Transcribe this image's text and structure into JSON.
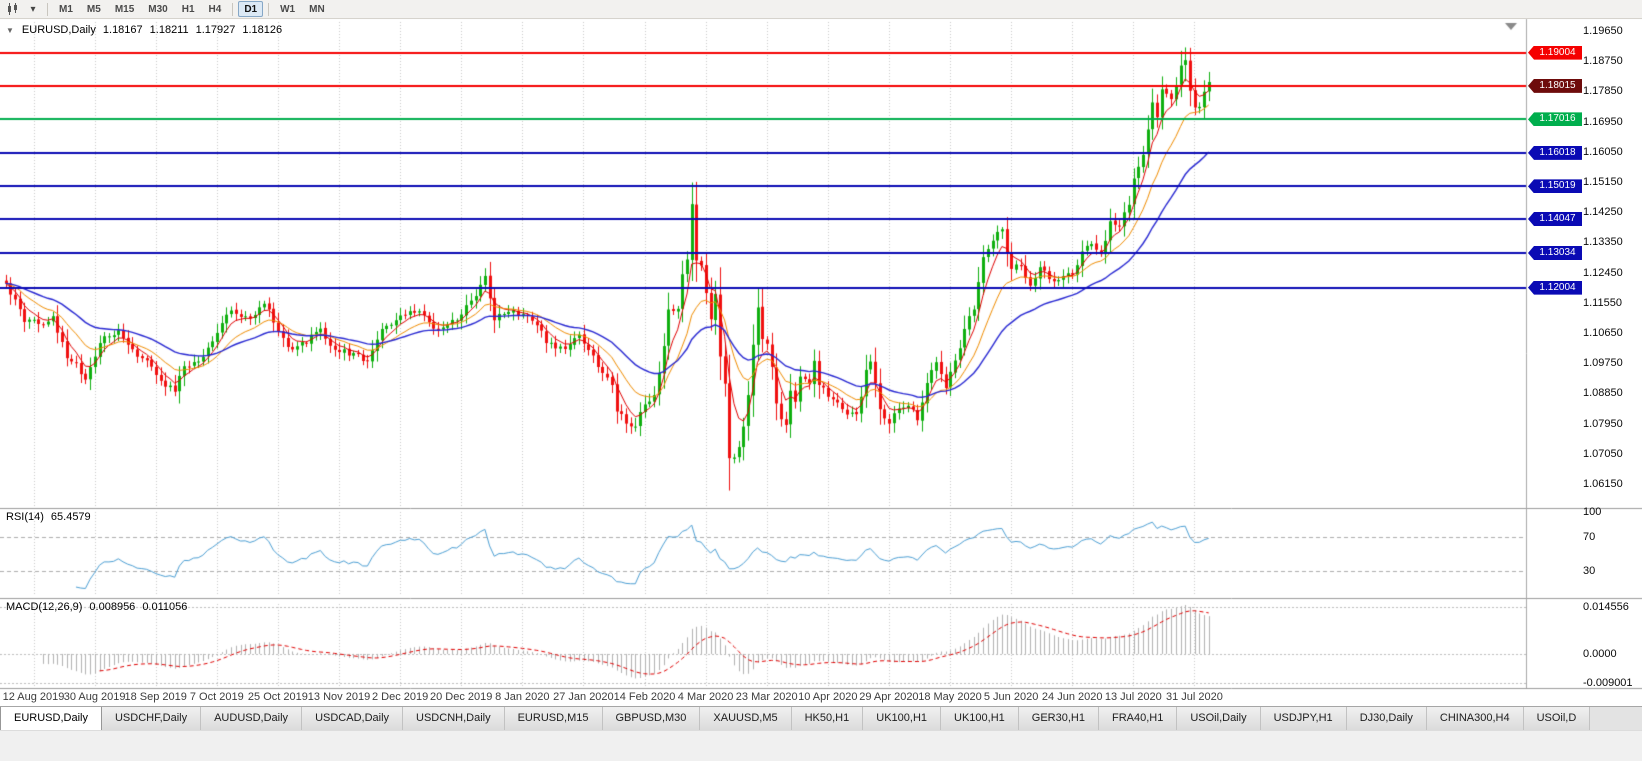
{
  "toolbar": {
    "chart_type_icon": "candlestick-chart-icon",
    "dropdown_icon": "▾",
    "timeframes": [
      {
        "label": "M1",
        "active": false,
        "sep_after": false
      },
      {
        "label": "M5",
        "active": false,
        "sep_after": false
      },
      {
        "label": "M15",
        "active": false,
        "sep_after": false
      },
      {
        "label": "M30",
        "active": false,
        "sep_after": false
      },
      {
        "label": "H1",
        "active": false,
        "sep_after": false
      },
      {
        "label": "H4",
        "active": false,
        "sep_after": true
      },
      {
        "label": "D1",
        "active": true,
        "sep_after": true
      },
      {
        "label": "W1",
        "active": false,
        "sep_after": false
      },
      {
        "label": "MN",
        "active": false,
        "sep_after": false
      }
    ]
  },
  "chart_data": {
    "type": "candlestick",
    "symbol": "EURUSD,Daily",
    "collapse_icon": "▼",
    "ohlc_line": {
      "open": "1.18167",
      "high": "1.18211",
      "low": "1.17927",
      "close": "1.18126"
    },
    "x_dates": [
      "12 Aug 2019",
      "30 Aug 2019",
      "18 Sep 2019",
      "7 Oct 2019",
      "25 Oct 2019",
      "13 Nov 2019",
      "2 Dec 2019",
      "20 Dec 2019",
      "8 Jan 2020",
      "27 Jan 2020",
      "14 Feb 2020",
      "4 Mar 2020",
      "23 Mar 2020",
      "10 Apr 2020",
      "29 Apr 2020",
      "18 May 2020",
      "5 Jun 2020",
      "24 Jun 2020",
      "13 Jul 2020",
      "31 Jul 2020"
    ],
    "bars_per_label": 13,
    "bar_count": 257,
    "y_ticks": [
      "1.19650",
      "1.18750",
      "1.17850",
      "1.16950",
      "1.16050",
      "1.15150",
      "1.14250",
      "1.13350",
      "1.12450",
      "1.11550",
      "1.10650",
      "1.09750",
      "1.08850",
      "1.07950",
      "1.07050",
      "1.06150"
    ],
    "y_range": {
      "top_tick": 1.1965,
      "bottom_tick": 1.0615,
      "tick_step": 0.009
    },
    "close_waypoints": [
      [
        0,
        1.1213
      ],
      [
        2,
        1.1165
      ],
      [
        4,
        1.1098
      ],
      [
        7,
        1.1092
      ],
      [
        10,
        1.1115
      ],
      [
        13,
        1.099
      ],
      [
        15,
        1.0975
      ],
      [
        17,
        1.0926
      ],
      [
        20,
        1.1035
      ],
      [
        24,
        1.1073
      ],
      [
        26,
        1.103
      ],
      [
        29,
        1.099
      ],
      [
        32,
        1.094
      ],
      [
        34,
        1.0905
      ],
      [
        36,
        1.089
      ],
      [
        38,
        1.0966
      ],
      [
        41,
        1.098
      ],
      [
        44,
        1.104
      ],
      [
        48,
        1.1132
      ],
      [
        52,
        1.1108
      ],
      [
        55,
        1.1152
      ],
      [
        58,
        1.107
      ],
      [
        61,
        1.1016
      ],
      [
        64,
        1.1035
      ],
      [
        67,
        1.1078
      ],
      [
        70,
        1.1015
      ],
      [
        74,
        1.1005
      ],
      [
        77,
        1.0981
      ],
      [
        80,
        1.1077
      ],
      [
        83,
        1.1103
      ],
      [
        86,
        1.113
      ],
      [
        89,
        1.1118
      ],
      [
        91,
        1.1078
      ],
      [
        94,
        1.109
      ],
      [
        97,
        1.112
      ],
      [
        100,
        1.1175
      ],
      [
        102,
        1.1235
      ],
      [
        104,
        1.1103
      ],
      [
        107,
        1.1128
      ],
      [
        110,
        1.1121
      ],
      [
        113,
        1.1088
      ],
      [
        115,
        1.1035
      ],
      [
        117,
        1.1019
      ],
      [
        120,
        1.1032
      ],
      [
        122,
        1.106
      ],
      [
        125,
        1.0998
      ],
      [
        127,
        1.0946
      ],
      [
        129,
        1.091
      ],
      [
        130,
        1.0831
      ],
      [
        132,
        1.0795
      ],
      [
        134,
        1.0786
      ],
      [
        136,
        1.0852
      ],
      [
        138,
        1.088
      ],
      [
        140,
        1.1026
      ],
      [
        141,
        1.1135
      ],
      [
        143,
        1.1137
      ],
      [
        144,
        1.124
      ],
      [
        145,
        1.1284
      ],
      [
        146,
        1.1449
      ],
      [
        147,
        1.1281
      ],
      [
        148,
        1.1266
      ],
      [
        149,
        1.1184
      ],
      [
        150,
        1.1106
      ],
      [
        151,
        1.1181
      ],
      [
        152,
        1.0995
      ],
      [
        153,
        1.0914
      ],
      [
        154,
        1.0692
      ],
      [
        155,
        1.0694
      ],
      [
        156,
        1.0725
      ],
      [
        157,
        1.0786
      ],
      [
        158,
        1.088
      ],
      [
        159,
        1.103
      ],
      [
        160,
        1.1141
      ],
      [
        161,
        1.1047
      ],
      [
        162,
        1.1033
      ],
      [
        163,
        1.0964
      ],
      [
        164,
        1.0855
      ],
      [
        165,
        1.0808
      ],
      [
        166,
        1.0791
      ],
      [
        167,
        1.0893
      ],
      [
        168,
        1.086
      ],
      [
        169,
        1.0935
      ],
      [
        171,
        1.0915
      ],
      [
        172,
        1.0982
      ],
      [
        173,
        1.091
      ],
      [
        175,
        1.0875
      ],
      [
        177,
        1.0858
      ],
      [
        179,
        1.0822
      ],
      [
        181,
        1.0823
      ],
      [
        182,
        1.0875
      ],
      [
        183,
        1.0955
      ],
      [
        184,
        1.098
      ],
      [
        186,
        1.0838
      ],
      [
        188,
        1.0795
      ],
      [
        190,
        1.084
      ],
      [
        192,
        1.0848
      ],
      [
        194,
        1.0805
      ],
      [
        196,
        1.0916
      ],
      [
        198,
        1.0978
      ],
      [
        200,
        1.0901
      ],
      [
        202,
        1.0983
      ],
      [
        204,
        1.1077
      ],
      [
        206,
        1.1135
      ],
      [
        208,
        1.1291
      ],
      [
        210,
        1.134
      ],
      [
        212,
        1.1374
      ],
      [
        214,
        1.1256
      ],
      [
        216,
        1.1264
      ],
      [
        218,
        1.1206
      ],
      [
        220,
        1.1261
      ],
      [
        221,
        1.1251
      ],
      [
        223,
        1.1219
      ],
      [
        225,
        1.1234
      ],
      [
        227,
        1.1239
      ],
      [
        229,
        1.1308
      ],
      [
        231,
        1.133
      ],
      [
        233,
        1.13
      ],
      [
        235,
        1.1398
      ],
      [
        237,
        1.1383
      ],
      [
        239,
        1.1447
      ],
      [
        240,
        1.1525
      ],
      [
        242,
        1.1596
      ],
      [
        244,
        1.1752
      ],
      [
        245,
        1.1708
      ],
      [
        246,
        1.1791
      ],
      [
        247,
        1.1778
      ],
      [
        248,
        1.1762
      ],
      [
        249,
        1.1803
      ],
      [
        250,
        1.1862
      ],
      [
        251,
        1.1878
      ],
      [
        252,
        1.1787
      ],
      [
        253,
        1.1737
      ],
      [
        254,
        1.1739
      ],
      [
        255,
        1.1784
      ],
      [
        256,
        1.1813
      ]
    ],
    "extremes": [
      [
        36,
        1.094,
        1.0879
      ],
      [
        134,
        1.0812,
        1.0778
      ],
      [
        146,
        1.1495,
        1.136
      ],
      [
        154,
        1.0832,
        1.0636
      ],
      [
        188,
        1.0824,
        1.0766
      ],
      [
        250,
        1.1906,
        1.1808
      ],
      [
        251,
        1.1916,
        1.1815
      ]
    ],
    "h_lines": [
      {
        "price": 1.19004,
        "label": "1.19004",
        "color": "#F50000",
        "box": "#F50000"
      },
      {
        "price": 1.18015,
        "label": "1.18015",
        "color": "#F50000",
        "box": "#6E0B0B"
      },
      {
        "price": 1.17016,
        "label": "1.17016",
        "color": "#00AE4D",
        "box": "#00AE4D"
      },
      {
        "price": 1.16018,
        "label": "1.16018",
        "color": "#0A0AB4",
        "box": "#0A0AB4"
      },
      {
        "price": 1.15019,
        "label": "1.15019",
        "color": "#0A0AB4",
        "box": "#0A0AB4"
      },
      {
        "price": 1.14047,
        "label": "1.14047",
        "color": "#0A0AB4",
        "box": "#0A0AB4"
      },
      {
        "price": 1.13034,
        "label": "1.13034",
        "color": "#0A0AB4",
        "box": "#0A0AB4"
      },
      {
        "price": 1.12004,
        "label": "1.12004",
        "color": "#0A0AB4",
        "box": "#0A0AB4"
      }
    ],
    "moving_averages": [
      {
        "name": "fast",
        "period": 5,
        "color": "#E00000"
      },
      {
        "name": "medium",
        "period": 13,
        "color": "#F08C00"
      },
      {
        "name": "slow",
        "period": 30,
        "color": "#2828D2"
      }
    ],
    "candle_up_color": "#0FAF0F",
    "candle_down_color": "#F01010",
    "grid_color": "#c8c8c8",
    "rsi": {
      "label": "RSI(14)",
      "value": "65.4579",
      "levels": [
        100,
        70,
        30
      ],
      "level_labels": [
        "100",
        "70",
        "30"
      ],
      "color": "#4C9FD4"
    },
    "macd": {
      "label": "MACD(12,26,9)",
      "main_value": "0.008956",
      "signal_value": "0.011056",
      "axis_labels": [
        "0.014556",
        "0.0000",
        "-0.009001"
      ],
      "axis_values": [
        0.014556,
        0,
        -0.009001
      ],
      "hist_color": "#b2b2b2",
      "signal_color": "#E00000"
    }
  },
  "tabbar": {
    "tabs": [
      {
        "label": "EURUSD,Daily",
        "active": true
      },
      {
        "label": "USDCHF,Daily",
        "active": false
      },
      {
        "label": "AUDUSD,Daily",
        "active": false
      },
      {
        "label": "USDCAD,Daily",
        "active": false
      },
      {
        "label": "USDCNH,Daily",
        "active": false
      },
      {
        "label": "EURUSD,M15",
        "active": false
      },
      {
        "label": "GBPUSD,M30",
        "active": false
      },
      {
        "label": "XAUUSD,M5",
        "active": false
      },
      {
        "label": "HK50,H1",
        "active": false
      },
      {
        "label": "UK100,H1",
        "active": false
      },
      {
        "label": "UK100,H1",
        "active": false
      },
      {
        "label": "GER30,H1",
        "active": false
      },
      {
        "label": "FRA40,H1",
        "active": false
      },
      {
        "label": "USOil,Daily",
        "active": false
      },
      {
        "label": "USDJPY,H1",
        "active": false
      },
      {
        "label": "DJ30,Daily",
        "active": false
      },
      {
        "label": "CHINA300,H4",
        "active": false
      },
      {
        "label": "USOil,D",
        "active": false
      }
    ]
  }
}
